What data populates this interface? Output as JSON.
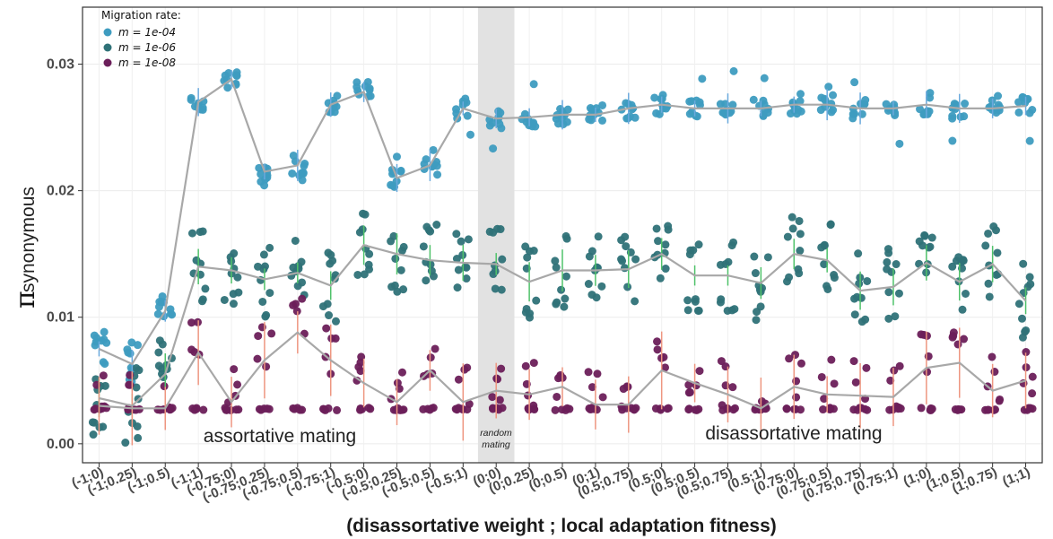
{
  "chart_data": {
    "type": "scatter",
    "xlabel": "(disassortative weight ; local adaptation fitness)",
    "ylabel_symbol": "π",
    "ylabel_text": "synonymous",
    "ylim": [
      -0.0015,
      0.0345
    ],
    "yticks": [
      0.0,
      0.01,
      0.02,
      0.03
    ],
    "ytick_labels": [
      "0.00",
      "0.01",
      "0.02",
      "0.03"
    ],
    "grid": true,
    "legend": {
      "title": "Migration rate:",
      "placement": "top-left",
      "entries": [
        "m = 1e-04",
        "m = 1e-06",
        "m = 1e-08"
      ]
    },
    "categories": [
      "(-1;0)",
      "(-1;0.25)",
      "(-1;0.5)",
      "(-1;1)",
      "(-0.75;0)",
      "(-0.75;0.25)",
      "(-0.75;0.5)",
      "(-0.75;1)",
      "(-0.5;0)",
      "(-0.5;0.25)",
      "(-0.5;0.5)",
      "(-0.5;1)",
      "(0;0)",
      "(0;0.25)",
      "(0;0.5)",
      "(0;1)",
      "(0.5;0.75)",
      "(0.5;0)",
      "(0.5;0.5)",
      "(0.5;0.75)",
      "(0.5;1)",
      "(0.75;0)",
      "(0.75;0.5)",
      "(0.75;0.75)",
      "(0.75;1)",
      "(1;0)",
      "(1;0.5)",
      "(1;0.75)",
      "(1;1)"
    ],
    "highlight_category_index": 12,
    "annotations": {
      "left": "assortative mating",
      "middle": "random\nmating",
      "right": "disassortative mating"
    },
    "colors": {
      "m = 1e-04": "#3e9cc0",
      "m = 1e-06": "#2f7278",
      "m = 1e-08": "#6b1f5a",
      "mean_line": "#a8a8a8",
      "err_1e-04": "#6aa9dd",
      "err_1e-06": "#4fc26a",
      "err_1e-08": "#ee9680",
      "highlight_band": "#e2e2e2"
    },
    "series": [
      {
        "name": "m = 1e-04",
        "mean": [
          0.0075,
          0.0063,
          0.0105,
          0.027,
          0.0288,
          0.0215,
          0.022,
          0.0268,
          0.0278,
          0.021,
          0.022,
          0.0265,
          0.0257,
          0.0258,
          0.026,
          0.026,
          0.0265,
          0.0268,
          0.0265,
          0.0265,
          0.0265,
          0.0268,
          0.0268,
          0.0265,
          0.0265,
          0.0268,
          0.0265,
          0.0265,
          0.0267
        ]
      },
      {
        "name": "m = 1e-06",
        "mean": [
          0.0036,
          0.003,
          0.0055,
          0.014,
          0.0137,
          0.013,
          0.0135,
          0.0125,
          0.0157,
          0.015,
          0.0145,
          0.0143,
          0.0142,
          0.0128,
          0.0137,
          0.0137,
          0.0138,
          0.015,
          0.0133,
          0.0133,
          0.0127,
          0.015,
          0.0145,
          0.0121,
          0.0124,
          0.0143,
          0.0128,
          0.0142,
          0.0113
        ]
      },
      {
        "name": "m = 1e-08",
        "mean": [
          0.003,
          0.0028,
          0.0028,
          0.0072,
          0.0033,
          0.0066,
          0.0088,
          0.0066,
          0.0048,
          0.0033,
          0.0058,
          0.0033,
          0.0042,
          0.0039,
          0.0045,
          0.0031,
          0.0031,
          0.0058,
          0.0048,
          0.0039,
          0.0028,
          0.0045,
          0.0039,
          0.0038,
          0.0037,
          0.006,
          0.0064,
          0.0042,
          0.005
        ]
      }
    ]
  }
}
